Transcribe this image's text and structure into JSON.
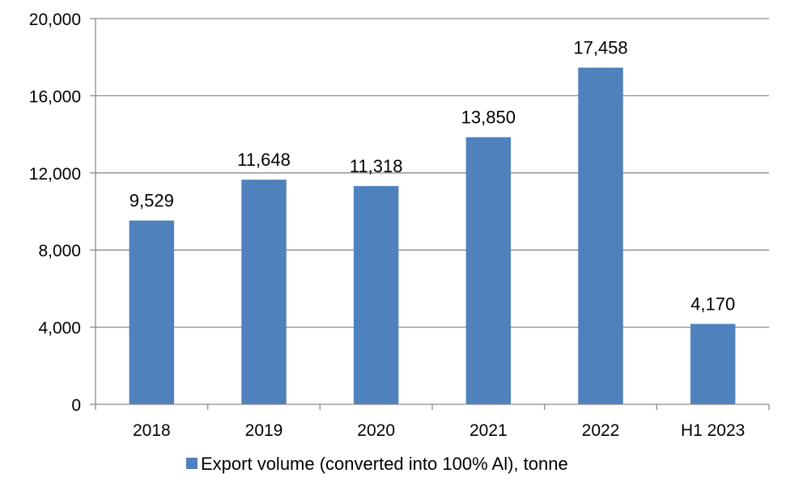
{
  "chart_data": {
    "type": "bar",
    "categories": [
      "2018",
      "2019",
      "2020",
      "2021",
      "2022",
      "H1 2023"
    ],
    "series": [
      {
        "name": "Export volume (converted into 100% Al), tonne",
        "values": [
          9529,
          11648,
          11318,
          13850,
          17458,
          4170
        ],
        "color": "#4f81bd"
      }
    ],
    "data_labels": [
      "9,529",
      "11,648",
      "11,318",
      "13,850",
      "17,458",
      "4,170"
    ],
    "ylim": [
      0,
      20000
    ],
    "yticks": [
      0,
      4000,
      8000,
      12000,
      16000,
      20000
    ],
    "ytick_labels": [
      "0",
      "4,000",
      "8,000",
      "12,000",
      "16,000",
      "20,000"
    ],
    "grid": true,
    "legend_position": "bottom-center"
  }
}
